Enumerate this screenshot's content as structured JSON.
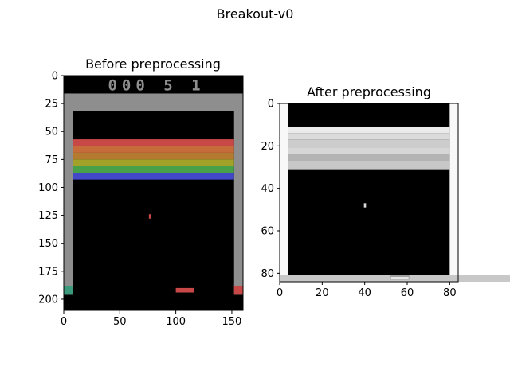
{
  "figure": {
    "suptitle": "Breakout-v0"
  },
  "chart_data": [
    {
      "type": "image",
      "title": "Before preprocessing",
      "xlim": [
        0,
        160
      ],
      "ylim": [
        210,
        0
      ],
      "xticks": [
        0,
        50,
        100,
        150
      ],
      "yticks": [
        0,
        25,
        50,
        75,
        100,
        125,
        150,
        175,
        200
      ],
      "colors": {
        "background": "#000000",
        "wall": "#8e8e8e",
        "score": "#8e8e8e",
        "ball": "#c84848",
        "paddle": "#c84848",
        "wall_base": "#3c9a7c"
      },
      "score_display": "000 5 1",
      "brick_rows": [
        {
          "y0": 57,
          "y1": 63,
          "color": "#c84848"
        },
        {
          "y0": 63,
          "y1": 69,
          "color": "#c66c3a"
        },
        {
          "y0": 69,
          "y1": 75,
          "color": "#b47a30"
        },
        {
          "y0": 75,
          "y1": 81,
          "color": "#a2a22a"
        },
        {
          "y0": 81,
          "y1": 87,
          "color": "#48a048"
        },
        {
          "y0": 87,
          "y1": 93,
          "color": "#4248c8"
        }
      ],
      "ball": {
        "x": 76,
        "y": 124
      },
      "paddle": {
        "x": 100,
        "y": 190,
        "width": 16
      }
    },
    {
      "type": "image",
      "title": "After preprocessing",
      "colormap": "gray",
      "xlim": [
        0,
        84
      ],
      "ylim": [
        84,
        0
      ],
      "xticks": [
        0,
        20,
        40,
        60,
        80
      ],
      "yticks": [
        0,
        20,
        40,
        60,
        80
      ],
      "brick_bands": [
        {
          "y0": 11,
          "y1": 14,
          "gray": 0.92
        },
        {
          "y0": 14,
          "y1": 17,
          "gray": 0.86
        },
        {
          "y0": 17,
          "y1": 21,
          "gray": 0.8
        },
        {
          "y0": 21,
          "y1": 24,
          "gray": 0.84
        },
        {
          "y0": 24,
          "y1": 27,
          "gray": 0.7
        },
        {
          "y0": 27,
          "y1": 31,
          "gray": 0.78
        }
      ],
      "ball": {
        "x": 40,
        "y": 47
      },
      "paddle": {
        "x": 52,
        "y": 81,
        "width": 9
      }
    }
  ]
}
